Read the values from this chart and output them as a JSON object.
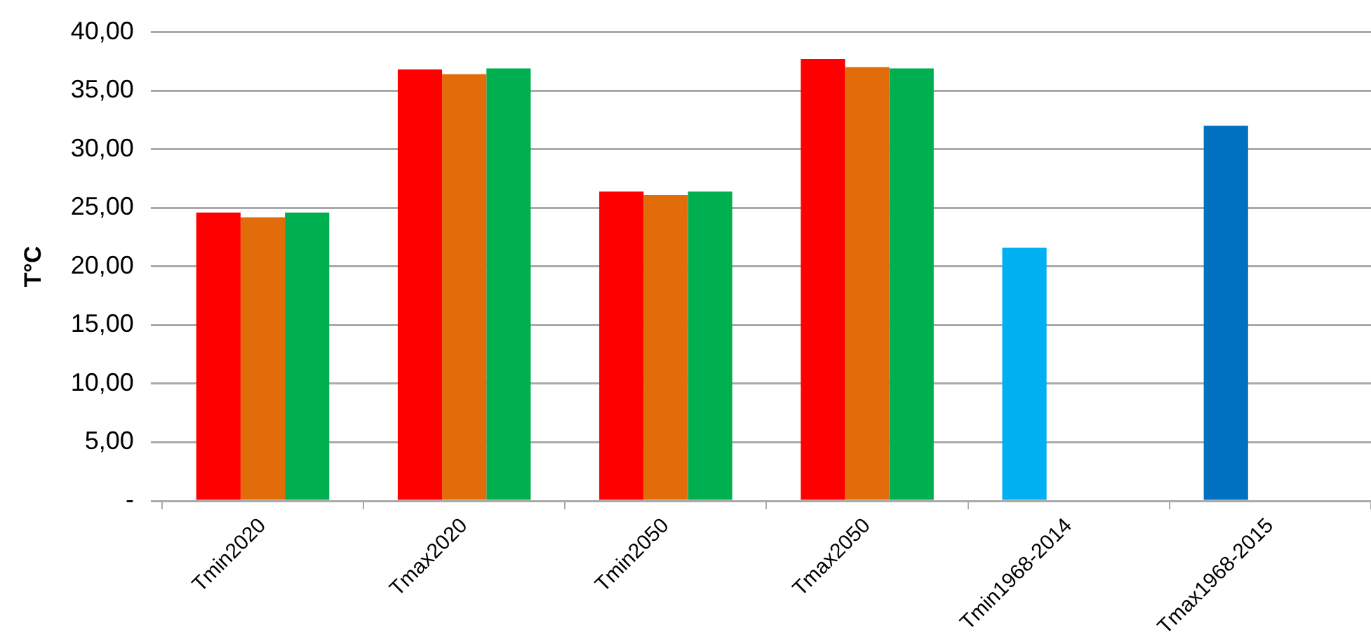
{
  "chart_data": {
    "type": "bar",
    "ylabel": "T°C",
    "categories": [
      "Tmin2020",
      "Tmax2020",
      "Tmin2050",
      "Tmax2050",
      "Tmin1968-2014",
      "Tmax1968-2015"
    ],
    "series": [
      {
        "colors": [
          "#ff0000",
          "#ff0000",
          "#ff0000",
          "#ff0000",
          "#00b0f0",
          "#0070c0"
        ],
        "values": [
          24.6,
          36.8,
          26.4,
          37.7,
          21.6,
          32.0
        ]
      },
      {
        "color": "#e36c0a",
        "values": [
          24.2,
          36.4,
          26.1,
          37.0,
          null,
          null
        ]
      },
      {
        "color": "#00b050",
        "values": [
          24.6,
          36.9,
          26.4,
          36.9,
          null,
          null
        ]
      }
    ],
    "ylim": [
      0,
      40
    ],
    "yticks": [
      {
        "value": 0,
        "label": "-"
      },
      {
        "value": 5,
        "label": "5,00"
      },
      {
        "value": 10,
        "label": "10,00"
      },
      {
        "value": 15,
        "label": "15,00"
      },
      {
        "value": 20,
        "label": "20,00"
      },
      {
        "value": 25,
        "label": "25,00"
      },
      {
        "value": 30,
        "label": "30,00"
      },
      {
        "value": 35,
        "label": "35,00"
      },
      {
        "value": 40,
        "label": "40,00"
      }
    ],
    "grid": "y",
    "legend": false
  }
}
